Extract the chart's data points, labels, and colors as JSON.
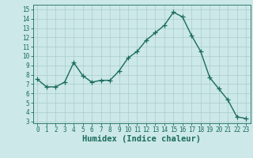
{
  "x": [
    0,
    1,
    2,
    3,
    4,
    5,
    6,
    7,
    8,
    9,
    10,
    11,
    12,
    13,
    14,
    15,
    16,
    17,
    18,
    19,
    20,
    21,
    22,
    23
  ],
  "y": [
    7.5,
    6.7,
    6.7,
    7.2,
    9.3,
    7.9,
    7.2,
    7.4,
    7.4,
    8.4,
    9.8,
    10.5,
    11.7,
    12.5,
    13.3,
    14.7,
    14.2,
    12.2,
    10.5,
    7.7,
    6.5,
    5.3,
    3.5,
    3.3
  ],
  "line_color": "#1a6b5e",
  "marker": "+",
  "markersize": 4,
  "linewidth": 1.0,
  "bg_color": "#cce8e8",
  "grid_color": "#aacccc",
  "xlabel": "Humidex (Indice chaleur)",
  "xlim": [
    -0.5,
    23.5
  ],
  "ylim": [
    2.8,
    15.5
  ],
  "yticks": [
    3,
    4,
    5,
    6,
    7,
    8,
    9,
    10,
    11,
    12,
    13,
    14,
    15
  ],
  "xticks": [
    0,
    1,
    2,
    3,
    4,
    5,
    6,
    7,
    8,
    9,
    10,
    11,
    12,
    13,
    14,
    15,
    16,
    17,
    18,
    19,
    20,
    21,
    22,
    23
  ],
  "tick_fontsize": 5.5,
  "label_fontsize": 7.5,
  "label_color": "#1a6b5e",
  "tick_color": "#1a6b5e",
  "spine_color": "#1a6b5e"
}
